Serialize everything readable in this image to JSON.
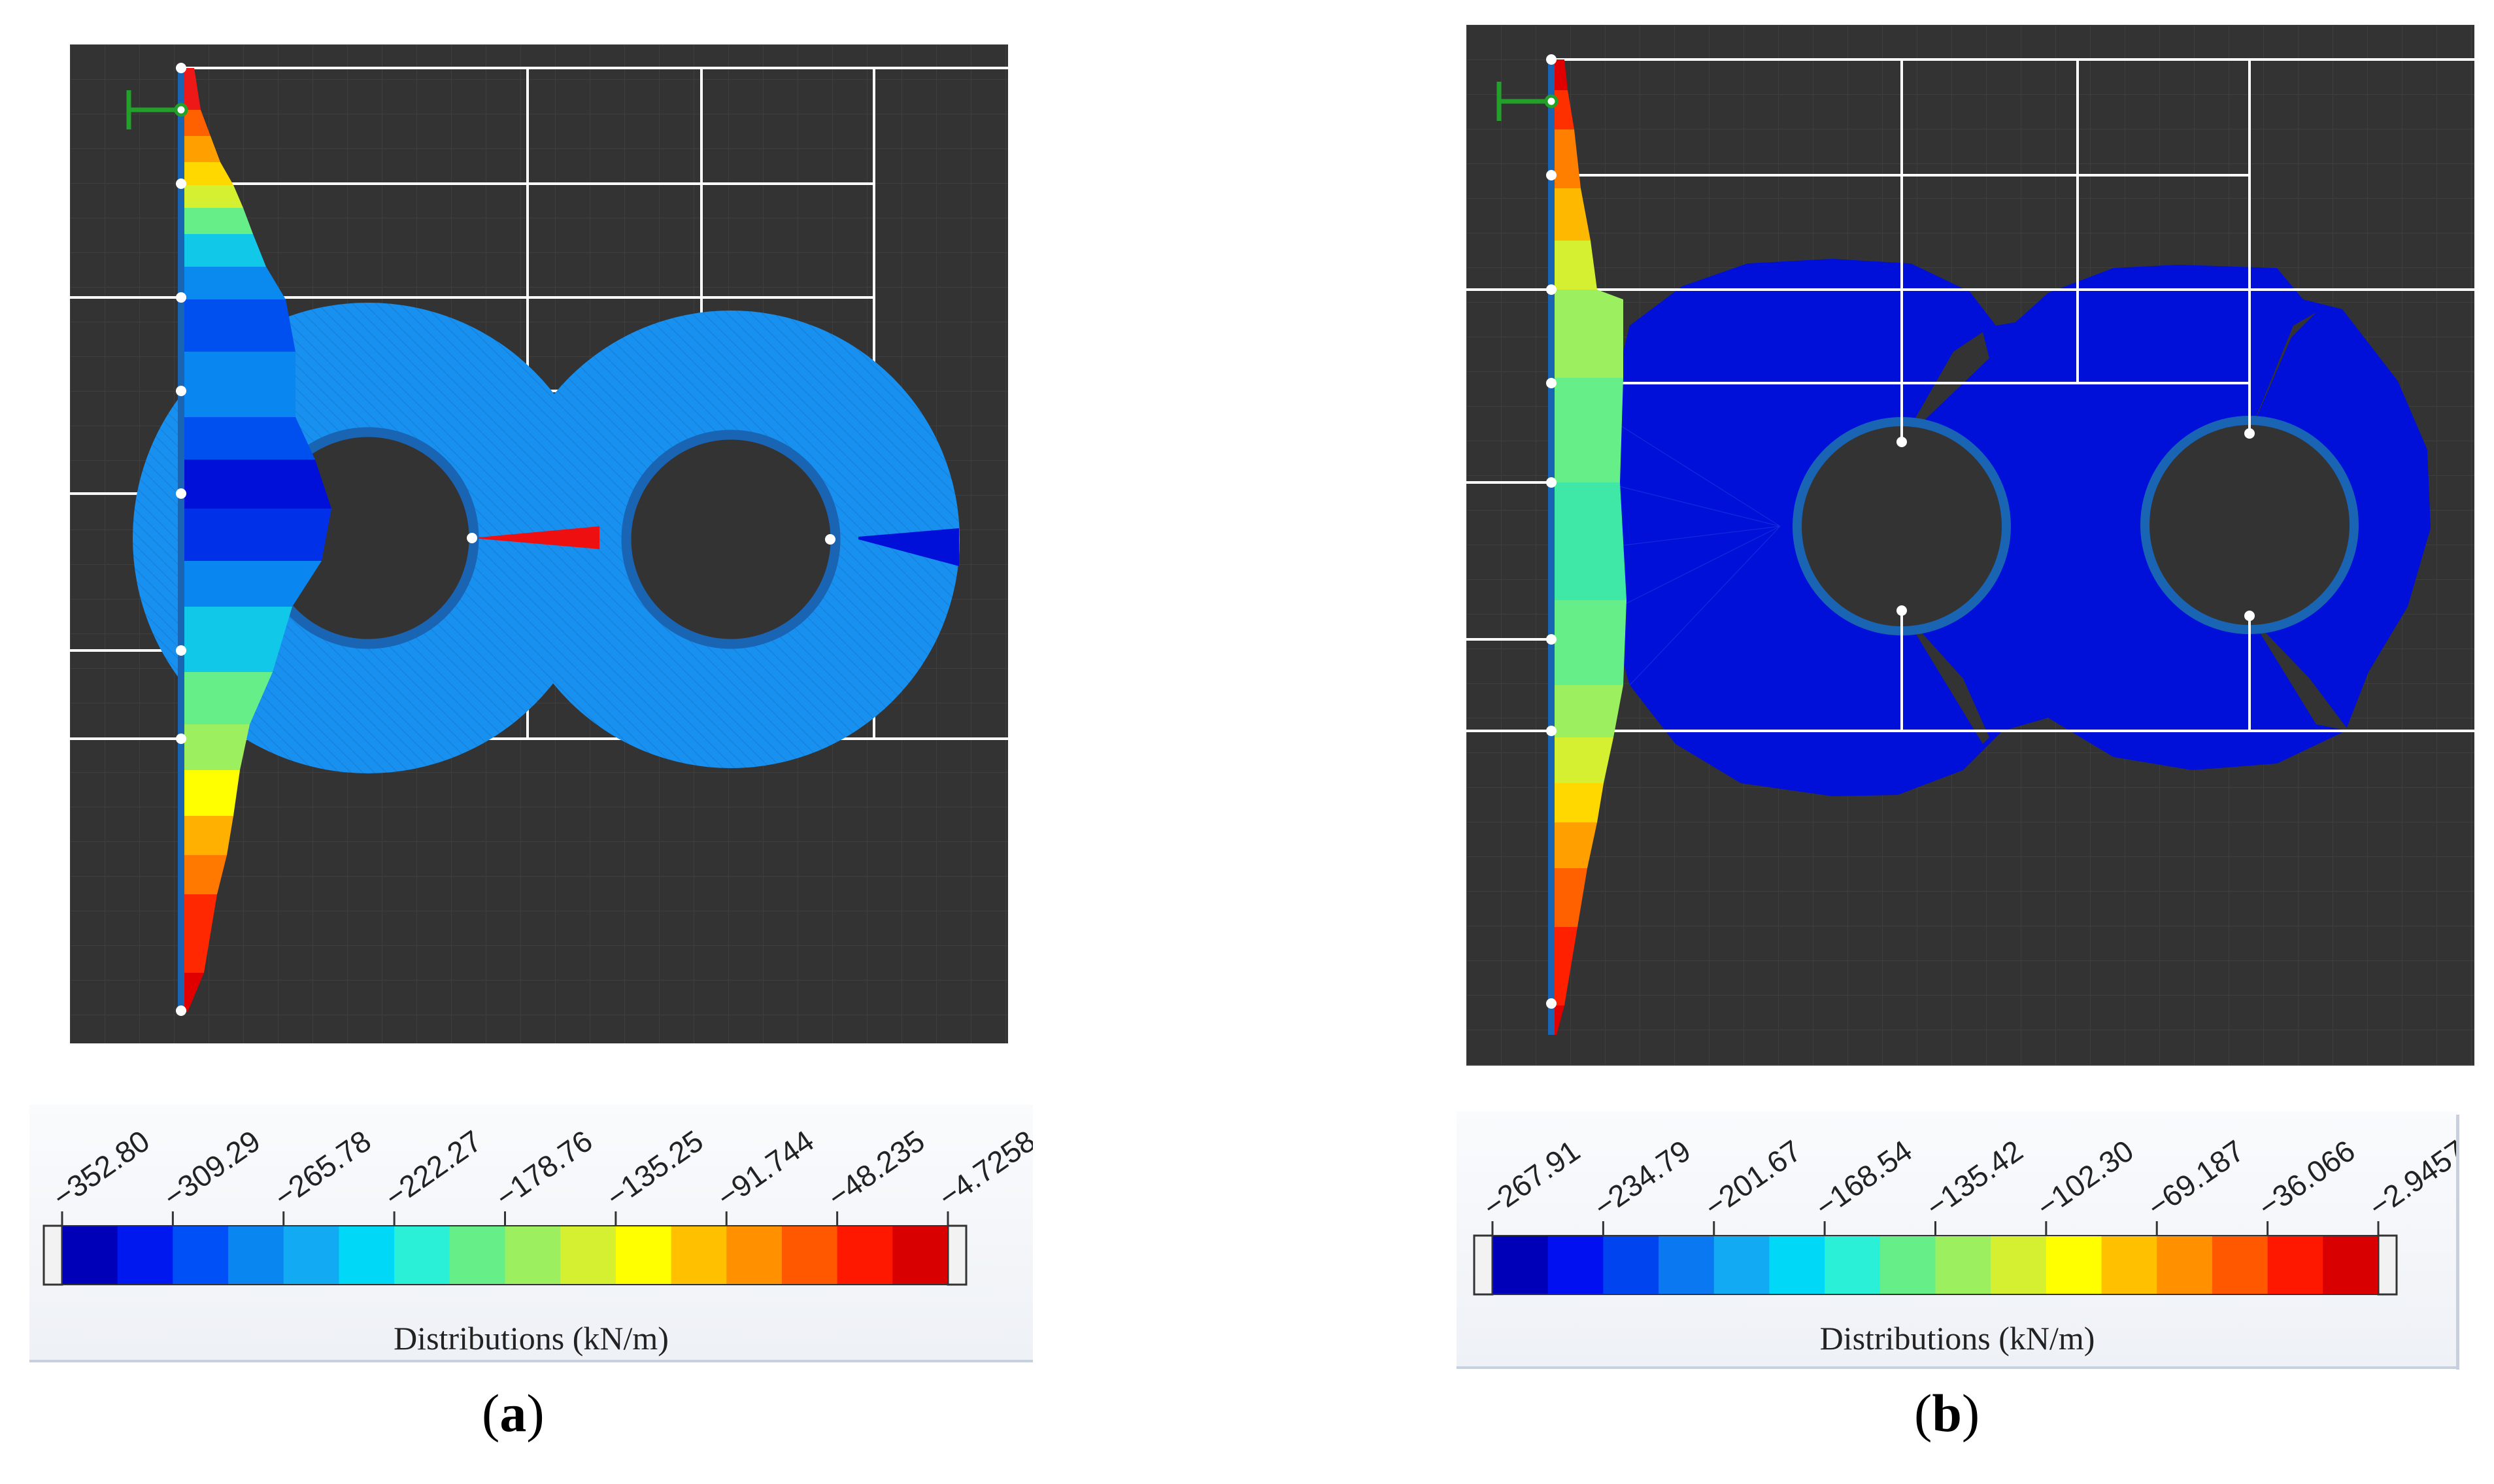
{
  "panels": [
    {
      "caption_open": "(",
      "caption_letter": "a",
      "caption_close": ")",
      "legend_title": "Distributions (kN/m)",
      "legend_ticks": [
        "−352.80",
        "−309.29",
        "−265.78",
        "−222.27",
        "−178.76",
        "−135.25",
        "−91.744",
        "−48.235",
        "−4.7258"
      ],
      "legend_colors": [
        "#0000b8",
        "#0018f0",
        "#0050f8",
        "#0a86f0",
        "#12aaf2",
        "#00d8f8",
        "#2af0d8",
        "#66ee88",
        "#9cf060",
        "#d4f030",
        "#ffff00",
        "#ffc000",
        "#ff9000",
        "#ff5800",
        "#ff1800",
        "#d80000"
      ]
    },
    {
      "caption_open": "(",
      "caption_letter": "b",
      "caption_close": ")",
      "legend_title": "Distributions (kN/m)",
      "legend_ticks": [
        "−267.91",
        "−234.79",
        "−201.67",
        "−168.54",
        "−135.42",
        "−102.30",
        "−69.187",
        "−36.066",
        "−2.9457"
      ],
      "legend_colors": [
        "#0000b8",
        "#0010f0",
        "#0044f0",
        "#0a78f0",
        "#12aaf2",
        "#00d8f8",
        "#2af0d8",
        "#66ee88",
        "#9cf060",
        "#d4f030",
        "#ffff00",
        "#ffc000",
        "#ff9000",
        "#ff5800",
        "#ff1800",
        "#d80000"
      ]
    }
  ]
}
